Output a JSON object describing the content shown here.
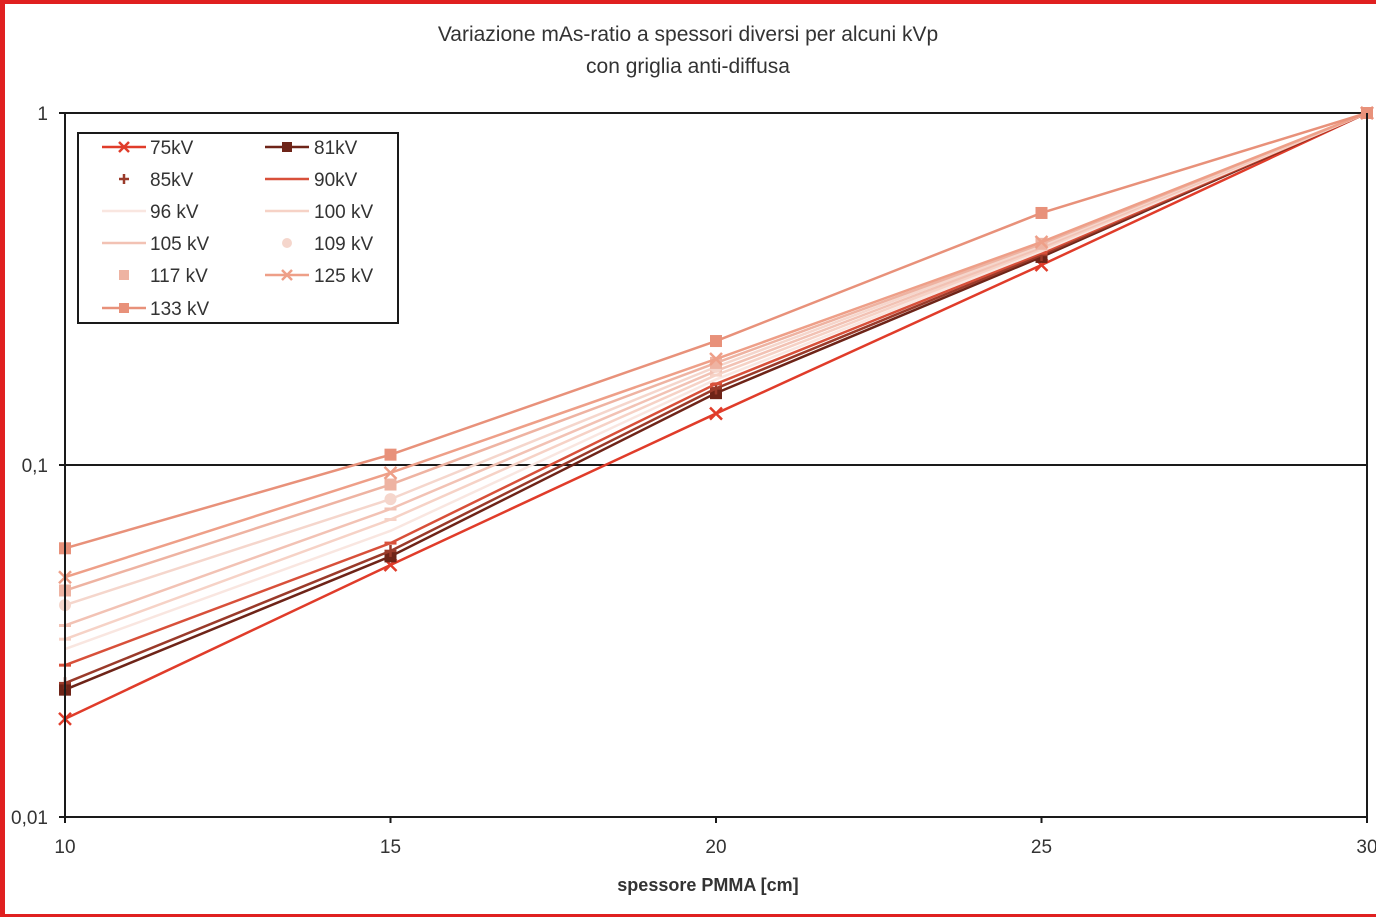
{
  "chart_data": {
    "type": "line",
    "title": [
      "Variazione mAs-ratio a spessori diversi per alcuni kVp",
      "con griglia anti-diffusa"
    ],
    "xlabel": "spessore PMMA [cm]",
    "ylabel": "",
    "yscale": "log",
    "xlim": [
      10,
      30
    ],
    "ylim": [
      0.01,
      1
    ],
    "x": [
      10,
      15,
      20,
      25,
      30
    ],
    "xtick_labels": [
      "10",
      "15",
      "20",
      "25",
      "30"
    ],
    "ytick_labels": [
      "1",
      "0,1",
      "0,01"
    ],
    "ytick_values": [
      1,
      0.1,
      0.01
    ],
    "grid": "horizontal major",
    "legend_position": "top-left",
    "series": [
      {
        "name": "75kV",
        "color": "#e03c2a",
        "marker": "x",
        "values": [
          0.019,
          0.052,
          0.14,
          0.37,
          1
        ]
      },
      {
        "name": "81kV",
        "color": "#6e2418",
        "marker": "square",
        "values": [
          0.023,
          0.055,
          0.16,
          0.39,
          1
        ]
      },
      {
        "name": "85kV",
        "color": "#9a3a2a",
        "marker": "plus",
        "values": [
          0.024,
          0.057,
          0.165,
          0.395,
          1
        ]
      },
      {
        "name": "90kV",
        "color": "#d8503a",
        "marker": "dash",
        "values": [
          0.027,
          0.06,
          0.17,
          0.4,
          1
        ]
      },
      {
        "name": "96 kV",
        "color": "#f9e6e0",
        "marker": "none",
        "values": [
          0.03,
          0.065,
          0.175,
          0.405,
          1
        ]
      },
      {
        "name": "100 kV",
        "color": "#f6d2c6",
        "marker": "dash",
        "values": [
          0.032,
          0.07,
          0.18,
          0.41,
          1
        ]
      },
      {
        "name": "105 kV",
        "color": "#f2c2b4",
        "marker": "dash",
        "values": [
          0.035,
          0.075,
          0.185,
          0.415,
          1
        ]
      },
      {
        "name": "109 kV",
        "color": "#f5d6cc",
        "marker": "circle",
        "values": [
          0.04,
          0.08,
          0.19,
          0.42,
          1
        ]
      },
      {
        "name": "117 kV",
        "color": "#eeb3a2",
        "marker": "square",
        "values": [
          0.044,
          0.088,
          0.195,
          0.425,
          1
        ]
      },
      {
        "name": "125 kV",
        "color": "#ee9f88",
        "marker": "x",
        "values": [
          0.048,
          0.095,
          0.2,
          0.43,
          1
        ]
      },
      {
        "name": "133 kV",
        "color": "#e8917a",
        "marker": "square",
        "values": [
          0.058,
          0.107,
          0.225,
          0.52,
          1
        ]
      }
    ]
  }
}
